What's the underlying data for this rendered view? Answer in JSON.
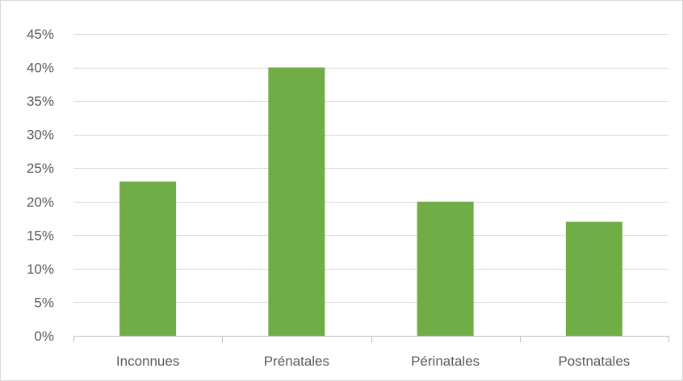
{
  "chart_data": {
    "type": "bar",
    "title": "",
    "xlabel": "",
    "ylabel": "",
    "categories": [
      "Inconnues",
      "Prénatales",
      "Périnatales",
      "Postnatales"
    ],
    "series": [
      {
        "values": [
          23,
          40,
          20,
          17
        ]
      }
    ],
    "ylim": [
      0,
      45
    ],
    "y_ticks": [
      0,
      5,
      10,
      15,
      20,
      25,
      30,
      35,
      40,
      45
    ],
    "y_tick_labels": [
      "0%",
      "5%",
      "10%",
      "15%",
      "20%",
      "25%",
      "30%",
      "35%",
      "40%",
      "45%"
    ],
    "grid": true,
    "legend": "none",
    "bar_color": "#70ad47",
    "grid_color": "#d9d9d9",
    "axis_color": "#bfbfbf",
    "text_color": "#595959"
  }
}
